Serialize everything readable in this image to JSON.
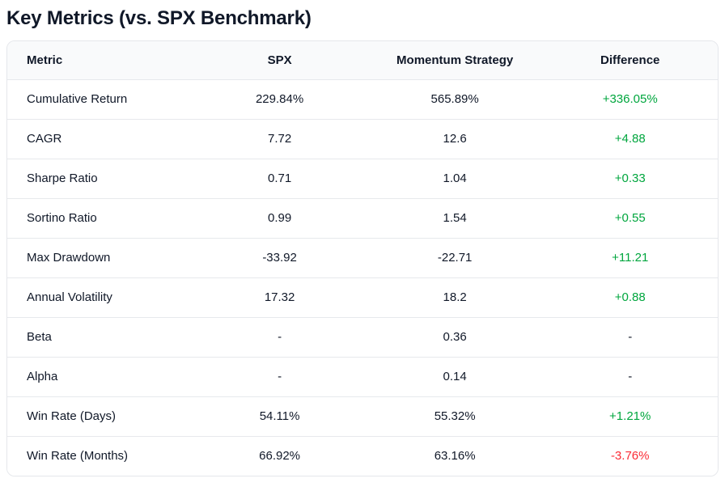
{
  "section": {
    "title": "Key Metrics (vs. SPX Benchmark)"
  },
  "colors": {
    "positive_green": "#00a63e",
    "negative_red": "#fb2c36",
    "text_dark": "#101828",
    "header_bg": "#f9fafb",
    "border": "#e5e7eb"
  },
  "table": {
    "columns": [
      "Metric",
      "SPX",
      "Momentum Strategy",
      "Difference"
    ],
    "rows": [
      {
        "metric": "Cumulative Return",
        "spx": "229.84%",
        "momentum": "565.89%",
        "difference": "+336.05%",
        "diff_color": "positive"
      },
      {
        "metric": "CAGR",
        "spx": "7.72",
        "momentum": "12.6",
        "difference": "+4.88",
        "diff_color": "positive"
      },
      {
        "metric": "Sharpe Ratio",
        "spx": "0.71",
        "momentum": "1.04",
        "difference": "+0.33",
        "diff_color": "positive"
      },
      {
        "metric": "Sortino Ratio",
        "spx": "0.99",
        "momentum": "1.54",
        "difference": "+0.55",
        "diff_color": "positive"
      },
      {
        "metric": "Max Drawdown",
        "spx": "-33.92",
        "momentum": "-22.71",
        "difference": "+11.21",
        "diff_color": "positive"
      },
      {
        "metric": "Annual Volatility",
        "spx": "17.32",
        "momentum": "18.2",
        "difference": "+0.88",
        "diff_color": "positive"
      },
      {
        "metric": "Beta",
        "spx": "-",
        "momentum": "0.36",
        "difference": "-",
        "diff_color": "neutral"
      },
      {
        "metric": "Alpha",
        "spx": "-",
        "momentum": "0.14",
        "difference": "-",
        "diff_color": "neutral"
      },
      {
        "metric": "Win Rate (Days)",
        "spx": "54.11%",
        "momentum": "55.32%",
        "difference": "+1.21%",
        "diff_color": "positive"
      },
      {
        "metric": "Win Rate (Months)",
        "spx": "66.92%",
        "momentum": "63.16%",
        "difference": "-3.76%",
        "diff_color": "negative"
      }
    ]
  }
}
